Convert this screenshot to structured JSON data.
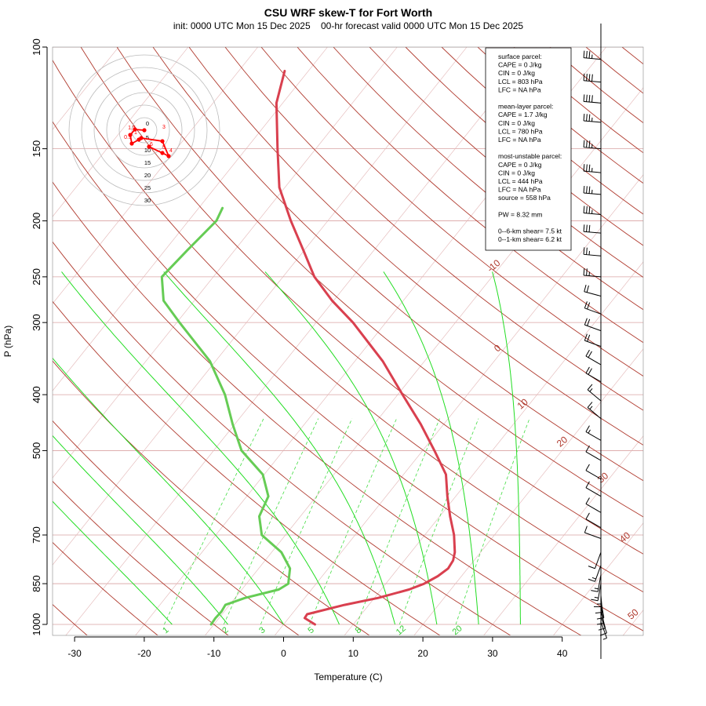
{
  "chart_data": {
    "type": "line",
    "title": "CSU WRF skew-T for Fort Worth",
    "subtitle": "init: 0000 UTC Mon 15 Dec 2025    00-hr forecast valid 0000 UTC Mon 15 Dec 2025",
    "xlabel": "Temperature (C)",
    "ylabel": "P (hPa)",
    "x_ticks": [
      -30,
      -20,
      -10,
      0,
      10,
      20,
      30,
      40
    ],
    "y_ticks": [
      100,
      150,
      200,
      250,
      300,
      400,
      500,
      700,
      850,
      1000
    ],
    "y_scale": "log",
    "isotherm_labels": [
      "-10",
      "0",
      "10",
      "20",
      "30",
      "40",
      "50"
    ],
    "mixing_ratio_labels": [
      "1",
      "2",
      "3",
      "5",
      "8",
      "12",
      "20"
    ],
    "series": [
      {
        "color": "#d9404f",
        "points": [
          {
            "p": 1000,
            "t": 4.5
          },
          {
            "p": 975,
            "t": 2.3
          },
          {
            "p": 960,
            "t": 2.2
          },
          {
            "p": 925,
            "t": 6.5
          },
          {
            "p": 900,
            "t": 10.5
          },
          {
            "p": 870,
            "t": 14.0
          },
          {
            "p": 850,
            "t": 15.5
          },
          {
            "p": 825,
            "t": 16.6
          },
          {
            "p": 800,
            "t": 17.2
          },
          {
            "p": 775,
            "t": 17.0
          },
          {
            "p": 750,
            "t": 16.3
          },
          {
            "p": 700,
            "t": 14.2
          },
          {
            "p": 650,
            "t": 11.5
          },
          {
            "p": 600,
            "t": 8.8
          },
          {
            "p": 550,
            "t": 6.1
          },
          {
            "p": 500,
            "t": 1.7
          },
          {
            "p": 450,
            "t": -3.3
          },
          {
            "p": 400,
            "t": -9.3
          },
          {
            "p": 350,
            "t": -16.0
          },
          {
            "p": 300,
            "t": -24.7
          },
          {
            "p": 275,
            "t": -30.2
          },
          {
            "p": 250,
            "t": -35.5
          },
          {
            "p": 225,
            "t": -40.1
          },
          {
            "p": 200,
            "t": -45.3
          },
          {
            "p": 175,
            "t": -50.8
          },
          {
            "p": 150,
            "t": -55.5
          },
          {
            "p": 125,
            "t": -60.9
          },
          {
            "p": 110,
            "t": -63.4
          }
        ]
      },
      {
        "color": "#66cc55",
        "points": [
          {
            "p": 1000,
            "t": -10.4
          },
          {
            "p": 975,
            "t": -10.5
          },
          {
            "p": 950,
            "t": -10.4
          },
          {
            "p": 925,
            "t": -10.6
          },
          {
            "p": 900,
            "t": -8.6
          },
          {
            "p": 870,
            "t": -4.7
          },
          {
            "p": 850,
            "t": -4.0
          },
          {
            "p": 800,
            "t": -5.5
          },
          {
            "p": 750,
            "t": -8.6
          },
          {
            "p": 700,
            "t": -13.4
          },
          {
            "p": 650,
            "t": -15.9
          },
          {
            "p": 600,
            "t": -16.9
          },
          {
            "p": 550,
            "t": -20.2
          },
          {
            "p": 500,
            "t": -26.0
          },
          {
            "p": 450,
            "t": -30.3
          },
          {
            "p": 400,
            "t": -34.8
          },
          {
            "p": 350,
            "t": -40.8
          },
          {
            "p": 300,
            "t": -49.6
          },
          {
            "p": 275,
            "t": -54.4
          },
          {
            "p": 250,
            "t": -57.4
          },
          {
            "p": 225,
            "t": -56.8
          },
          {
            "p": 200,
            "t": -56.0
          },
          {
            "p": 190,
            "t": -56.6
          }
        ]
      }
    ],
    "info_box": [
      "surface parcel:",
      "CAPE = 0 J/kg",
      "CIN = 0 J/kg",
      "LCL = 803 hPa",
      "LFC = NA hPa",
      "",
      "mean-layer parcel:",
      "CAPE = 1.7 J/kg",
      "CIN = 0 J/kg",
      "LCL = 780 hPa",
      "LFC = NA hPa",
      "",
      "most-unstable parcel:",
      "CAPE = 0 J/kg",
      "CIN = 0 J/kg",
      "LCL = 444 hPa",
      "LFC = NA hPa",
      "source = 558 hPa",
      "",
      "PW =  8.32 mm",
      "",
      "0--6-km shear= 7.5 kt",
      "0--1-km shear= 6.2 kt"
    ],
    "hodograph": {
      "ring_labels": [
        "0",
        "5",
        "10",
        "15",
        "20",
        "25",
        "30"
      ],
      "point_labels": [
        "0.5",
        "1",
        "1.5",
        "3",
        "4",
        "5",
        "6"
      ],
      "points": [
        {
          "u": -3.5,
          "v": -1.0
        },
        {
          "u": -9.0,
          "v": -6.0
        },
        {
          "u": -11.5,
          "v": -0.5
        },
        {
          "u": -12.5,
          "v": 1.5
        },
        {
          "u": -9.5,
          "v": 2.0
        },
        {
          "u": -6.0,
          "v": -2.5
        },
        {
          "u": -4.0,
          "v": -3.5
        },
        {
          "u": -1.5,
          "v": -7.0
        }
      ],
      "label_points": [
        {
          "text": "0.5",
          "u": -10.5,
          "v": -5.5
        },
        {
          "text": "1",
          "u": -5.5,
          "v": -2.5
        },
        {
          "text": "1.5",
          "u": -8.0,
          "v": 0.5
        },
        {
          "text": "3",
          "u": 12.5,
          "v": 1.0
        },
        {
          "text": "4",
          "u": 17.0,
          "v": -14.0
        },
        {
          "text": "5",
          "u": 12.5,
          "v": -12.0
        },
        {
          "text": "6",
          "u": 4.5,
          "v": -10.0
        }
      ]
    },
    "hodo_path": [
      {
        "u": 0.0,
        "v": 0.0
      },
      {
        "u": -6.0,
        "v": 0.5
      },
      {
        "u": -9.0,
        "v": -3.0
      },
      {
        "u": -8.0,
        "v": -8.5
      },
      {
        "u": -3.5,
        "v": -6.0
      },
      {
        "u": -2.0,
        "v": -5.0
      },
      {
        "u": 11.5,
        "v": -7.0
      },
      {
        "u": 15.5,
        "v": -16.5
      },
      {
        "u": 11.5,
        "v": -14.5
      },
      {
        "u": 3.0,
        "v": -10.5
      }
    ],
    "wind_profile": [
      {
        "p": 105,
        "spd": 35,
        "dir": 275
      },
      {
        "p": 115,
        "spd": 40,
        "dir": 275
      },
      {
        "p": 125,
        "spd": 40,
        "dir": 275
      },
      {
        "p": 135,
        "spd": 35,
        "dir": 275
      },
      {
        "p": 150,
        "spd": 35,
        "dir": 275
      },
      {
        "p": 165,
        "spd": 35,
        "dir": 275
      },
      {
        "p": 180,
        "spd": 35,
        "dir": 275
      },
      {
        "p": 195,
        "spd": 35,
        "dir": 275
      },
      {
        "p": 210,
        "spd": 30,
        "dir": 275
      },
      {
        "p": 230,
        "spd": 25,
        "dir": 275
      },
      {
        "p": 250,
        "spd": 25,
        "dir": 275
      },
      {
        "p": 270,
        "spd": 20,
        "dir": 285
      },
      {
        "p": 290,
        "spd": 20,
        "dir": 290
      },
      {
        "p": 310,
        "spd": 20,
        "dir": 290
      },
      {
        "p": 330,
        "spd": 20,
        "dir": 290
      },
      {
        "p": 355,
        "spd": 20,
        "dir": 300
      },
      {
        "p": 380,
        "spd": 20,
        "dir": 300
      },
      {
        "p": 410,
        "spd": 15,
        "dir": 310
      },
      {
        "p": 440,
        "spd": 15,
        "dir": 310
      },
      {
        "p": 480,
        "spd": 15,
        "dir": 300
      },
      {
        "p": 520,
        "spd": 10,
        "dir": 300
      },
      {
        "p": 560,
        "spd": 10,
        "dir": 300
      },
      {
        "p": 600,
        "spd": 10,
        "dir": 300
      },
      {
        "p": 640,
        "spd": 10,
        "dir": 300
      },
      {
        "p": 680,
        "spd": 10,
        "dir": 300
      },
      {
        "p": 710,
        "spd": 10,
        "dir": 290
      },
      {
        "p": 750,
        "spd": 10,
        "dir": 200
      },
      {
        "p": 790,
        "spd": 15,
        "dir": 200
      },
      {
        "p": 820,
        "spd": 15,
        "dir": 190
      },
      {
        "p": 850,
        "spd": 15,
        "dir": 190
      },
      {
        "p": 870,
        "spd": 15,
        "dir": 180
      },
      {
        "p": 890,
        "spd": 10,
        "dir": 175
      },
      {
        "p": 910,
        "spd": 10,
        "dir": 170
      },
      {
        "p": 930,
        "spd": 10,
        "dir": 170
      },
      {
        "p": 950,
        "spd": 10,
        "dir": 165
      },
      {
        "p": 970,
        "spd": 10,
        "dir": 160
      },
      {
        "p": 990,
        "spd": 5,
        "dir": 160
      }
    ],
    "colors": {
      "isotherm": "#b03a2e",
      "dry_adiabat": "#b03a2e",
      "moist_adiabat": "#22dd22",
      "mixing_ratio": "#44dd44",
      "isobar": "#d9a3a3",
      "temperature": "#d9404f",
      "dewpoint": "#66cc55",
      "hodograph": "#ff0000"
    }
  }
}
